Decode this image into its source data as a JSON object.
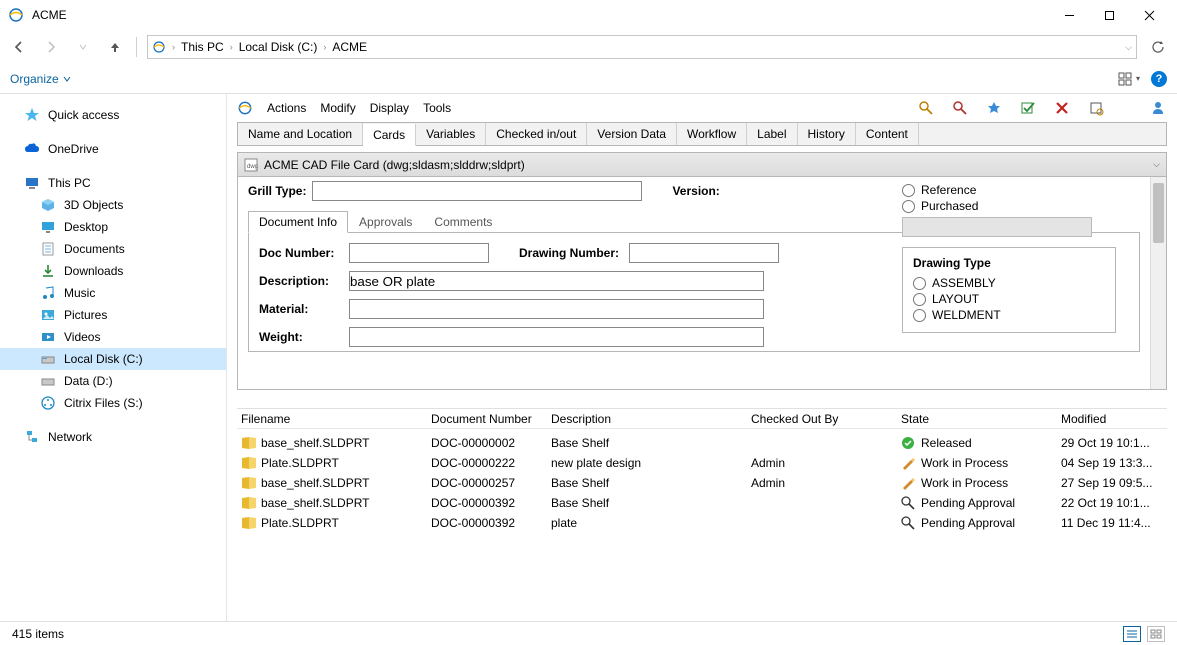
{
  "window": {
    "title": "ACME"
  },
  "breadcrumb": {
    "items": [
      "This PC",
      "Local Disk (C:)",
      "ACME"
    ]
  },
  "orgbar": {
    "organize": "Organize"
  },
  "sidebar": {
    "quick_access": "Quick access",
    "onedrive": "OneDrive",
    "this_pc": "This PC",
    "objects3d": "3D Objects",
    "desktop": "Desktop",
    "documents": "Documents",
    "downloads": "Downloads",
    "music": "Music",
    "pictures": "Pictures",
    "videos": "Videos",
    "local_disk": "Local Disk (C:)",
    "data_d": "Data (D:)",
    "citrix": "Citrix Files (S:)",
    "network": "Network"
  },
  "menubar": {
    "actions": "Actions",
    "modify": "Modify",
    "display": "Display",
    "tools": "Tools"
  },
  "tabs": {
    "name_location": "Name and Location",
    "cards": "Cards",
    "variables": "Variables",
    "checked": "Checked in/out",
    "version": "Version Data",
    "workflow": "Workflow",
    "label": "Label",
    "history": "History",
    "content": "Content"
  },
  "card": {
    "header": "ACME CAD File Card  (dwg;sldasm;slddrw;sldprt)",
    "grill_type": "Grill Type:",
    "version": "Version:",
    "ref": "Reference",
    "purchased": "Purchased",
    "drawing_type": "Drawing Type",
    "assembly": "ASSEMBLY",
    "layout": "LAYOUT",
    "weldment": "WELDMENT",
    "subtabs": {
      "docinfo": "Document Info",
      "approvals": "Approvals",
      "comments": "Comments"
    },
    "docinfo": {
      "doc_number": "Doc Number:",
      "drawing_number": "Drawing Number:",
      "description": "Description:",
      "material": "Material:",
      "weight": "Weight:",
      "description_value": "base OR plate"
    }
  },
  "grid": {
    "cols": {
      "filename": "Filename",
      "docnum": "Document Number",
      "description": "Description",
      "checked": "Checked Out By",
      "state": "State",
      "modified": "Modified"
    },
    "rows": [
      {
        "file": "base_shelf.SLDPRT",
        "docnum": "DOC-00000002",
        "desc": "Base Shelf",
        "checked": "",
        "state": "Released",
        "state_icon": "released",
        "mod": "29 Oct 19 10:1..."
      },
      {
        "file": "Plate.SLDPRT",
        "docnum": "DOC-00000222",
        "desc": "new plate design",
        "checked": "Admin",
        "state": "Work in Process",
        "state_icon": "wip",
        "mod": "04 Sep 19 13:3..."
      },
      {
        "file": "base_shelf.SLDPRT",
        "docnum": "DOC-00000257",
        "desc": "Base Shelf",
        "checked": "Admin",
        "state": "Work in Process",
        "state_icon": "wip",
        "mod": "27 Sep 19 09:5..."
      },
      {
        "file": "base_shelf.SLDPRT",
        "docnum": "DOC-00000392",
        "desc": "Base Shelf",
        "checked": "",
        "state": "Pending Approval",
        "state_icon": "pending",
        "mod": "22 Oct 19 10:1..."
      },
      {
        "file": "Plate.SLDPRT",
        "docnum": "DOC-00000392",
        "desc": "plate",
        "checked": "",
        "state": "Pending Approval",
        "state_icon": "pending",
        "mod": "11 Dec 19 11:4..."
      }
    ]
  },
  "status": {
    "items": "415 items"
  },
  "colors": {
    "link": "#0a64a0",
    "selection": "#cce8ff",
    "border": "#b6b6b6"
  }
}
